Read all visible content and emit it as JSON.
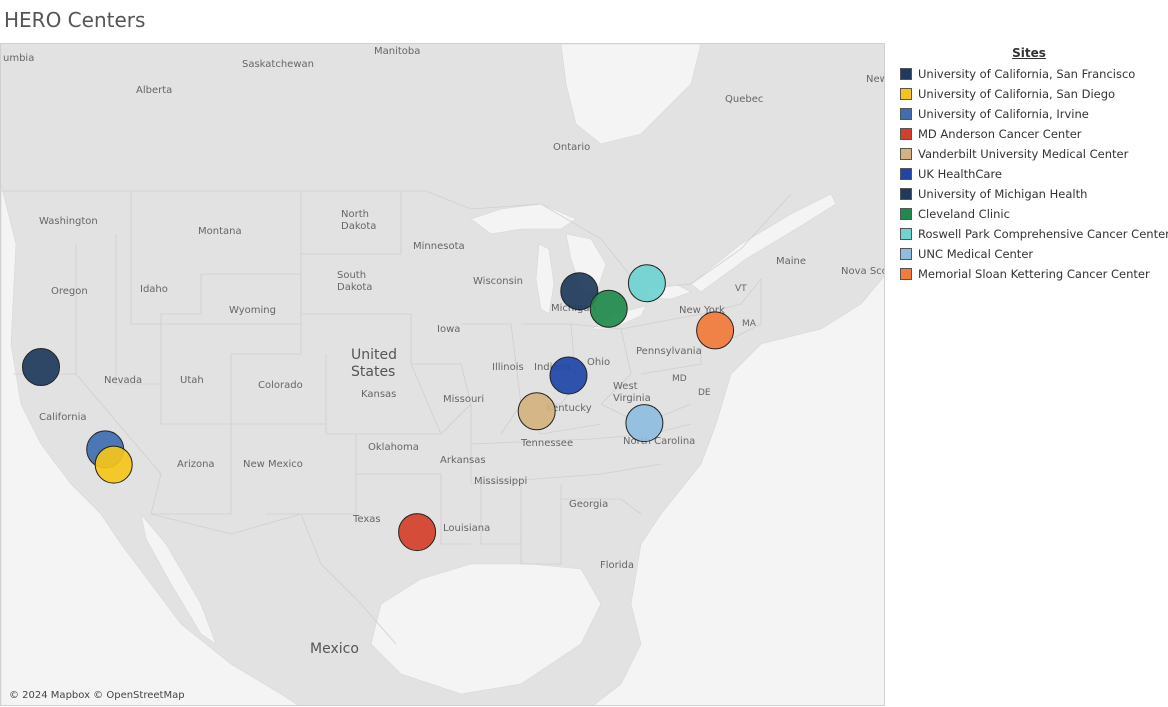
{
  "title": "HERO Centers",
  "map": {
    "credit": "© 2024 Mapbox © OpenStreetMap",
    "labels": {
      "manitoba": "Manitoba",
      "saskatchewan": "Saskatchewan",
      "alberta": "Alberta",
      "quebec": "Quebec",
      "ontario": "Ontario",
      "washington": "Washington",
      "montana": "Montana",
      "north_dakota": "North Dakota",
      "minnesota": "Minnesota",
      "south_dakota": "South Dakota",
      "wisconsin": "Wisconsin",
      "oregon": "Oregon",
      "idaho": "Idaho",
      "wyoming": "Wyoming",
      "michigan": "Michigan",
      "new_york": "New York",
      "maine": "Maine",
      "vt": "VT",
      "ma": "MA",
      "nova_scotia": "Nova Sco",
      "iowa": "Iowa",
      "united_states": "United States",
      "nevada": "Nevada",
      "utah": "Utah",
      "colorado": "Colorado",
      "illinois": "Illinois",
      "indiana": "Indiana",
      "ohio": "Ohio",
      "pennsylvania": "Pennsylvania",
      "kansas": "Kansas",
      "missouri": "Missouri",
      "west_virginia": "West Virginia",
      "md": "MD",
      "de": "DE",
      "california": "California",
      "kentucky": "Kentucky",
      "oklahoma": "Oklahoma",
      "tennessee": "Tennessee",
      "north_carolina": "North Carolina",
      "arizona": "Arizona",
      "new_mexico": "New Mexico",
      "arkansas": "Arkansas",
      "mississippi": "Mississippi",
      "georgia": "Georgia",
      "texas": "Texas",
      "louisiana": "Louisiana",
      "florida": "Florida",
      "mexico": "Mexico",
      "newfoundland": "New and",
      "umbia": "umbia"
    }
  },
  "legend": {
    "title": "Sites",
    "items": [
      {
        "label": "University of California, San Francisco",
        "color": "#1f3a5c"
      },
      {
        "label": "University of California, San Diego",
        "color": "#f5c518"
      },
      {
        "label": "University of California, Irvine",
        "color": "#3e6eb0"
      },
      {
        "label": "MD Anderson Cancer Center",
        "color": "#d43f2a"
      },
      {
        "label": "Vanderbilt University Medical Center",
        "color": "#d4b27f"
      },
      {
        "label": "UK HealthCare",
        "color": "#1f45a8"
      },
      {
        "label": "University of Michigan Health",
        "color": "#1f3a5c"
      },
      {
        "label": "Cleveland Clinic",
        "color": "#1f8a4c"
      },
      {
        "label": "Roswell Park Comprehensive Cancer Center",
        "color": "#6fd3d0"
      },
      {
        "label": "UNC Medical Center",
        "color": "#8fbde0"
      },
      {
        "label": "Memorial Sloan Kettering Cancer Center",
        "color": "#f27a3a"
      }
    ]
  },
  "sites": [
    {
      "name": "University of California, San Francisco",
      "color": "#1f3a5c",
      "lat": 37.76,
      "lon": -122.46
    },
    {
      "name": "University of California, Irvine",
      "color": "#3e6eb0",
      "lat": 33.64,
      "lon": -117.84
    },
    {
      "name": "University of California, San Diego",
      "color": "#f5c518",
      "lat": 32.88,
      "lon": -117.23
    },
    {
      "name": "MD Anderson Cancer Center",
      "color": "#d43f2a",
      "lat": 29.71,
      "lon": -95.4
    },
    {
      "name": "Vanderbilt University Medical Center",
      "color": "#d4b27f",
      "lat": 36.14,
      "lon": -86.8
    },
    {
      "name": "UK HealthCare",
      "color": "#1f45a8",
      "lat": 38.03,
      "lon": -84.51
    },
    {
      "name": "University of Michigan Health",
      "color": "#1f3a5c",
      "lat": 42.28,
      "lon": -83.73
    },
    {
      "name": "Cleveland Clinic",
      "color": "#1f8a4c",
      "lat": 41.5,
      "lon": -81.62
    },
    {
      "name": "Roswell Park Comprehensive Cancer Center",
      "color": "#6fd3d0",
      "lat": 42.9,
      "lon": -78.87
    },
    {
      "name": "UNC Medical Center",
      "color": "#8fbde0",
      "lat": 35.9,
      "lon": -79.05
    },
    {
      "name": "Memorial Sloan Kettering Cancer Center",
      "color": "#f27a3a",
      "lat": 40.76,
      "lon": -73.96
    }
  ]
}
